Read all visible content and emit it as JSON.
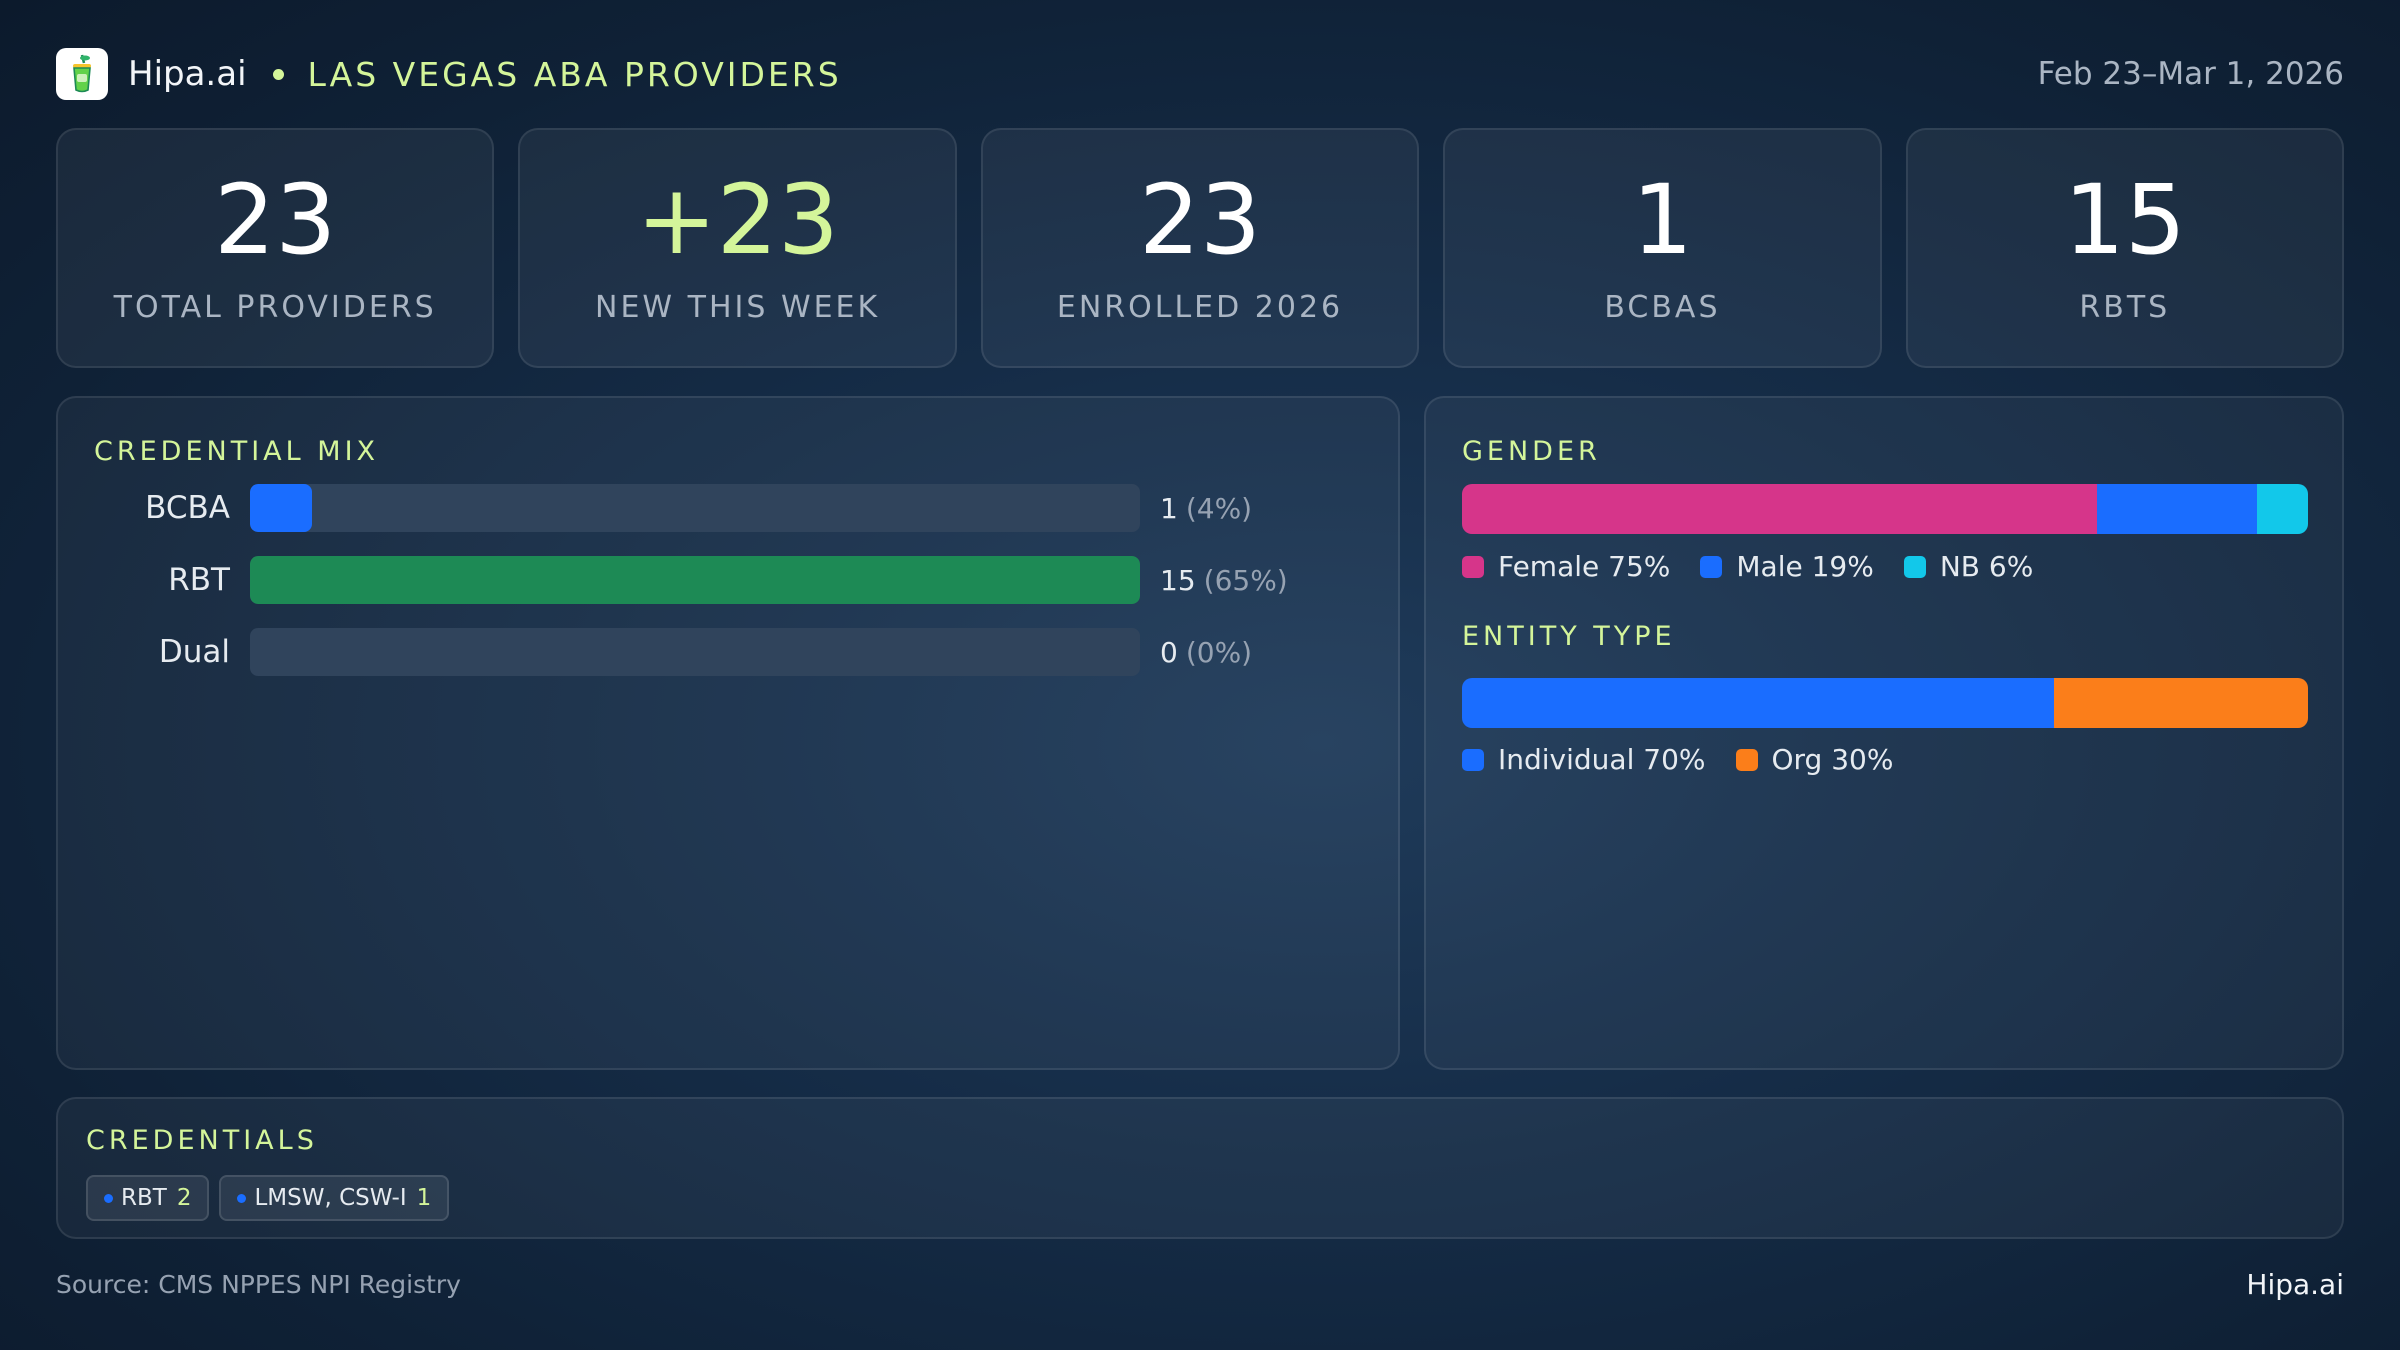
{
  "header": {
    "brand": "Hipa.ai",
    "region": "LAS VEGAS ABA PROVIDERS",
    "date_range": "Feb 23–Mar 1, 2026",
    "logo_icon": "cocktail-glass-icon"
  },
  "kpis": [
    {
      "value": "23",
      "label": "TOTAL PROVIDERS"
    },
    {
      "value": "+23",
      "label": "NEW THIS WEEK"
    },
    {
      "value": "23",
      "label": "ENROLLED 2026"
    },
    {
      "value": "1",
      "label": "BCBAS"
    },
    {
      "value": "15",
      "label": "RBTS"
    }
  ],
  "credential_mix": {
    "title": "CREDENTIAL MIX",
    "rows": [
      {
        "label": "BCBA",
        "count": "1",
        "pct": "(4%)",
        "fraction": 0.07,
        "color": "#1a6dff"
      },
      {
        "label": "RBT",
        "count": "15",
        "pct": "(65%)",
        "fraction": 1.0,
        "color": "#1d8a55"
      },
      {
        "label": "Dual",
        "count": "0",
        "pct": "(0%)",
        "fraction": 0,
        "color": "#1a6dff"
      }
    ]
  },
  "gender": {
    "title": "GENDER",
    "segments": [
      {
        "label": "Female 75%",
        "share": 75,
        "color": "#d6358a"
      },
      {
        "label": "Male 19%",
        "share": 19,
        "color": "#1a6dff"
      },
      {
        "label": "NB 6%",
        "share": 6,
        "color": "#12c8ea"
      }
    ]
  },
  "entity_type": {
    "title": "ENTITY TYPE",
    "segments": [
      {
        "label": "Individual 70%",
        "share": 70,
        "color": "#1a6dff"
      },
      {
        "label": "Org 30%",
        "share": 30,
        "color": "#fb7e1a"
      }
    ]
  },
  "credentials": {
    "title": "CREDENTIALS",
    "chips": [
      {
        "label": "RBT",
        "count": "2"
      },
      {
        "label": "LMSW, CSW-I",
        "count": "1"
      }
    ]
  },
  "footer": {
    "source": "Source: CMS NPPES NPI Registry",
    "brand": "Hipa.ai"
  }
}
